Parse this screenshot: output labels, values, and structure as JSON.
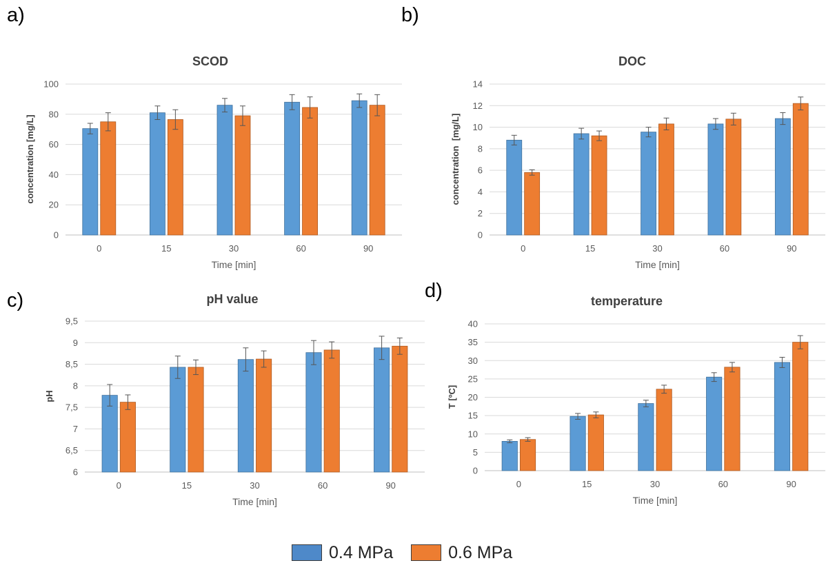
{
  "panels": [
    {
      "letter": "a)"
    },
    {
      "letter": "b)"
    },
    {
      "letter": "c)"
    },
    {
      "letter": "d)"
    }
  ],
  "colors": {
    "s1": "#5b9bd5",
    "s2": "#ed7d31",
    "s1_edge": "#41719c",
    "s2_edge": "#ae5a21",
    "grid": "#d9d9d9",
    "axis": "#bfbfbf",
    "text": "#595959"
  },
  "legend": [
    {
      "label": "0.4 MPa",
      "color": "#4e89c9"
    },
    {
      "label": "0.6 MPa",
      "color": "#ed7d31"
    }
  ],
  "chart_data": [
    {
      "type": "bar",
      "title": "SCOD",
      "xlabel": "Time [min]",
      "ylabel": "concentration [mg/L]",
      "categories": [
        "0",
        "15",
        "30",
        "60",
        "90"
      ],
      "ylim": [
        0,
        100
      ],
      "yticks": [
        0,
        20,
        40,
        60,
        80,
        100
      ],
      "ytick_labels": [
        "0",
        "20",
        "40",
        "60",
        "80",
        "100"
      ],
      "grid": true,
      "series": [
        {
          "name": "0.4 MPa",
          "values": [
            70.5,
            81,
            86,
            88,
            89
          ],
          "errors": [
            3.5,
            4.5,
            4.5,
            5,
            4.5
          ]
        },
        {
          "name": "0.6 MPa",
          "values": [
            75,
            76.5,
            79,
            84.5,
            86
          ],
          "errors": [
            6,
            6.5,
            6.5,
            7,
            7
          ]
        }
      ]
    },
    {
      "type": "bar",
      "title": "DOC",
      "xlabel": "Time [min]",
      "ylabel": "concentration  [mg/L]",
      "categories": [
        "0",
        "15",
        "30",
        "60",
        "90"
      ],
      "ylim": [
        0,
        14
      ],
      "yticks": [
        0,
        2,
        4,
        6,
        8,
        10,
        12,
        14
      ],
      "ytick_labels": [
        "0",
        "2",
        "4",
        "6",
        "8",
        "10",
        "12",
        "14"
      ],
      "grid": true,
      "series": [
        {
          "name": "0.4 MPa",
          "values": [
            8.8,
            9.4,
            9.55,
            10.3,
            10.8
          ],
          "errors": [
            0.45,
            0.5,
            0.45,
            0.5,
            0.55
          ]
        },
        {
          "name": "0.6 MPa",
          "values": [
            5.8,
            9.2,
            10.3,
            10.75,
            12.2
          ],
          "errors": [
            0.25,
            0.45,
            0.55,
            0.55,
            0.6
          ]
        }
      ]
    },
    {
      "type": "bar",
      "title": "pH value",
      "xlabel": "Time [min]",
      "ylabel": "pH",
      "categories": [
        "0",
        "15",
        "30",
        "60",
        "90"
      ],
      "ylim": [
        6,
        9.5
      ],
      "yticks": [
        6,
        6.5,
        7,
        7.5,
        8,
        8.5,
        9,
        9.5
      ],
      "ytick_labels": [
        "6",
        "6,5",
        "7",
        "7,5",
        "8",
        "8,5",
        "9",
        "9,5"
      ],
      "grid": true,
      "series": [
        {
          "name": "0.4 MPa",
          "values": [
            7.78,
            8.43,
            8.61,
            8.77,
            8.88
          ],
          "errors": [
            0.25,
            0.26,
            0.27,
            0.28,
            0.27
          ]
        },
        {
          "name": "0.6 MPa",
          "values": [
            7.62,
            8.43,
            8.62,
            8.83,
            8.92
          ],
          "errors": [
            0.17,
            0.17,
            0.19,
            0.19,
            0.19
          ]
        }
      ]
    },
    {
      "type": "bar",
      "title": "temperature",
      "xlabel": "Time [min]",
      "ylabel": "T [ºC]",
      "categories": [
        "0",
        "15",
        "30",
        "60",
        "90"
      ],
      "ylim": [
        0,
        40
      ],
      "yticks": [
        0,
        5,
        10,
        15,
        20,
        25,
        30,
        35,
        40
      ],
      "ytick_labels": [
        "0",
        "5",
        "10",
        "15",
        "20",
        "25",
        "30",
        "35",
        "40"
      ],
      "grid": true,
      "series": [
        {
          "name": "0.4 MPa",
          "values": [
            8,
            14.8,
            18.3,
            25.5,
            29.5
          ],
          "errors": [
            0.4,
            0.8,
            0.9,
            1.2,
            1.4
          ]
        },
        {
          "name": "0.6 MPa",
          "values": [
            8.5,
            15.2,
            22.2,
            28.2,
            35
          ],
          "errors": [
            0.5,
            0.8,
            1.1,
            1.3,
            1.8
          ]
        }
      ]
    }
  ]
}
